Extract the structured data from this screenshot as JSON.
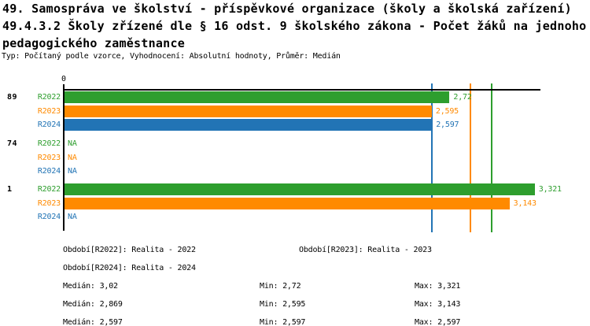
{
  "title": {
    "line1": "49. Samospráva ve školství - příspěvkové organizace (školy a školská zařízení)",
    "line2": "49.4.3.2 Školy zřízené dle § 16 odst. 9 školského zákona - Počet žáků na jednoho",
    "line3": "pedagogického zaměstnance",
    "subtitle": "Typ: Počítaný podle vzorce, Vyhodnocení: Absolutní hodnoty, Průměr: Medián"
  },
  "colors": {
    "R2022": "#2e9e2e",
    "R2023": "#ff8a00",
    "R2024": "#2274b5",
    "axis": "#000000"
  },
  "chart_data": {
    "type": "bar",
    "orientation": "horizontal",
    "x_axis": {
      "zero_label": "0",
      "xlim": [
        0,
        3.36
      ],
      "grid": false
    },
    "series_labels": [
      "R2022",
      "R2023",
      "R2024"
    ],
    "groups": [
      {
        "label": "89",
        "rows": [
          {
            "series": "R2022",
            "value": 2.72,
            "display": "2,72"
          },
          {
            "series": "R2023",
            "value": 2.595,
            "display": "2,595"
          },
          {
            "series": "R2024",
            "value": 2.597,
            "display": "2,597"
          }
        ]
      },
      {
        "label": "74",
        "rows": [
          {
            "series": "R2022",
            "value": null,
            "display": "NA"
          },
          {
            "series": "R2023",
            "value": null,
            "display": "NA"
          },
          {
            "series": "R2024",
            "value": null,
            "display": "NA"
          }
        ]
      },
      {
        "label": "1",
        "rows": [
          {
            "series": "R2022",
            "value": 3.321,
            "display": "3,321"
          },
          {
            "series": "R2023",
            "value": 3.143,
            "display": "3,143"
          },
          {
            "series": "R2024",
            "value": null,
            "display": "NA"
          }
        ]
      }
    ],
    "median_lines": [
      {
        "series": "R2022",
        "value": 3.02
      },
      {
        "series": "R2023",
        "value": 2.869
      },
      {
        "series": "R2024",
        "value": 2.597
      }
    ]
  },
  "legend": {
    "R2022": "Období[R2022]: Realita - 2022",
    "R2023": "Období[R2023]: Realita - 2023",
    "R2024": "Období[R2024]: Realita - 2024"
  },
  "stats": {
    "rows": [
      {
        "series": "R2022",
        "median": "Medián: 3,02",
        "min": "Min: 2,72",
        "max": "Max: 3,321"
      },
      {
        "series": "R2023",
        "median": "Medián: 2,869",
        "min": "Min: 2,595",
        "max": "Max: 3,143"
      },
      {
        "series": "R2024",
        "median": "Medián: 2,597",
        "min": "Min: 2,597",
        "max": "Max: 2,597"
      }
    ]
  }
}
